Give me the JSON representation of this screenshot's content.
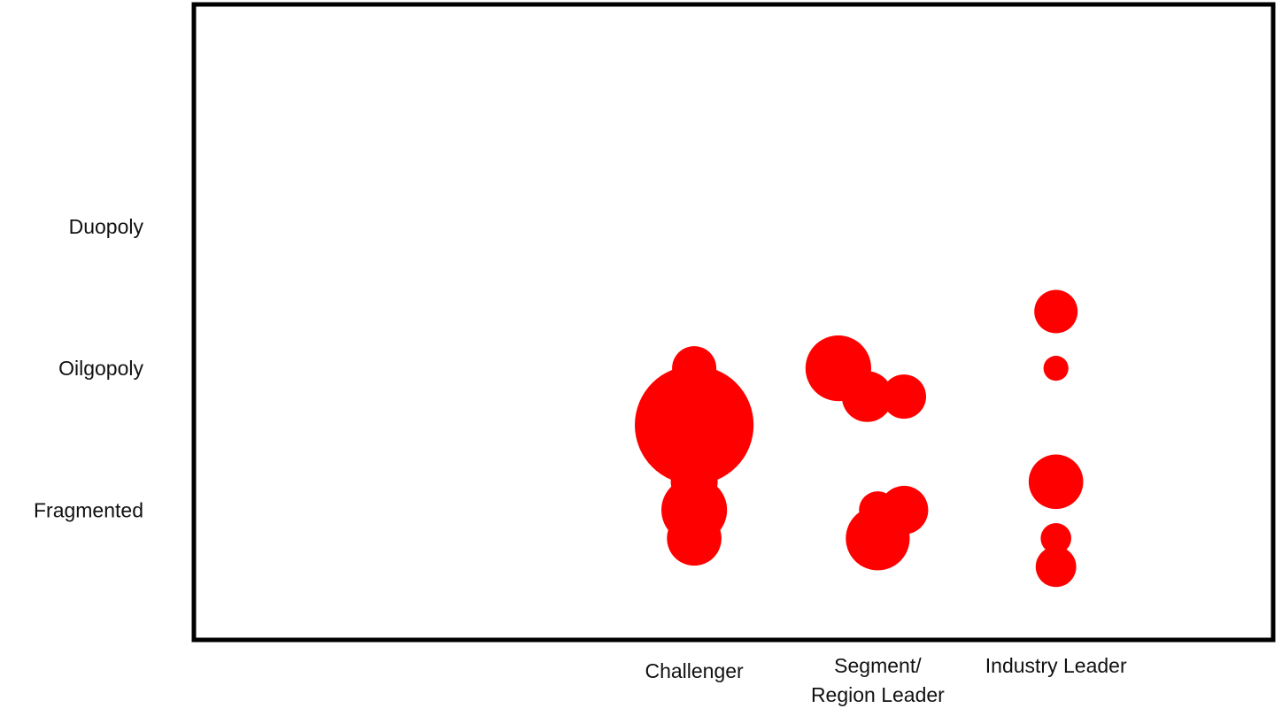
{
  "chart_data": {
    "type": "bubble",
    "title": "",
    "xlabel": "",
    "ylabel": "",
    "x_categories": [
      [
        "Challenger"
      ],
      [
        "Segment/",
        "Region Leader"
      ],
      [
        "Industry Leader"
      ]
    ],
    "y_categories": [
      "Fragmented",
      "Oilgopoly",
      "Duopoly"
    ],
    "xlim": [
      -1.9,
      2.2
    ],
    "ylim": [
      -0.9,
      3.55
    ],
    "grid": false,
    "legend": "none",
    "bubble_color": "#ff0000",
    "points": [
      {
        "x": 0.0,
        "y": 1.0,
        "size": 25
      },
      {
        "x": 0.0,
        "y": 0.6,
        "size": 180
      },
      {
        "x": 0.0,
        "y": 0.2,
        "size": 28
      },
      {
        "x": 0.0,
        "y": 0.0,
        "size": 55
      },
      {
        "x": 0.0,
        "y": -0.2,
        "size": 38
      },
      {
        "x": 0.55,
        "y": 1.0,
        "size": 55
      },
      {
        "x": 0.8,
        "y": 0.8,
        "size": 25
      },
      {
        "x": 0.66,
        "y": 0.8,
        "size": 33
      },
      {
        "x": 0.8,
        "y": 0.0,
        "size": 30
      },
      {
        "x": 0.7,
        "y": 0.0,
        "size": 18
      },
      {
        "x": 0.7,
        "y": -0.2,
        "size": 52
      },
      {
        "x": 1.38,
        "y": 1.4,
        "size": 24
      },
      {
        "x": 1.38,
        "y": 1.0,
        "size": 8
      },
      {
        "x": 1.38,
        "y": 0.2,
        "size": 38
      },
      {
        "x": 1.38,
        "y": -0.2,
        "size": 12
      },
      {
        "x": 1.38,
        "y": -0.4,
        "size": 21
      }
    ]
  }
}
